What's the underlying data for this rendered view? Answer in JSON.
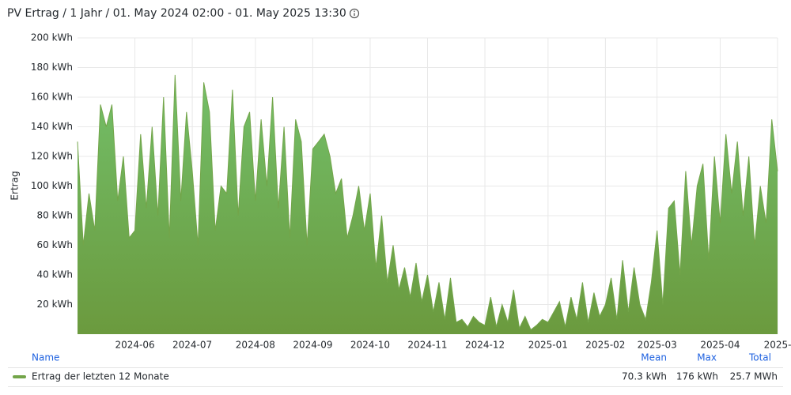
{
  "chart_data": {
    "type": "area",
    "title": "PV Ertrag / 1 Jahr / 01. May 2024 02:00 - 01. May 2025 13:30",
    "y_label": "Ertrag",
    "ylim": [
      0,
      200
    ],
    "yticks": [
      {
        "value": 20,
        "label": "20 kWh"
      },
      {
        "value": 40,
        "label": "40 kWh"
      },
      {
        "value": 60,
        "label": "60 kWh"
      },
      {
        "value": 80,
        "label": "80 kWh"
      },
      {
        "value": 100,
        "label": "100 kWh"
      },
      {
        "value": 120,
        "label": "120 kWh"
      },
      {
        "value": 140,
        "label": "140 kWh"
      },
      {
        "value": 160,
        "label": "160 kWh"
      },
      {
        "value": 180,
        "label": "180 kWh"
      },
      {
        "value": 200,
        "label": "200 kWh"
      }
    ],
    "grid": true,
    "categories": [
      null,
      null,
      null,
      null,
      null,
      null,
      null,
      null,
      null,
      null,
      "2024-06",
      null,
      null,
      null,
      null,
      null,
      null,
      null,
      null,
      null,
      "2024-07",
      null,
      null,
      null,
      null,
      null,
      null,
      null,
      null,
      null,
      null,
      "2024-08",
      null,
      null,
      null,
      null,
      null,
      null,
      null,
      null,
      null,
      "2024-09",
      null,
      null,
      null,
      null,
      null,
      null,
      null,
      null,
      null,
      "2024-10",
      null,
      null,
      null,
      null,
      null,
      null,
      null,
      null,
      null,
      "2024-11",
      null,
      null,
      null,
      null,
      null,
      null,
      null,
      null,
      null,
      "2024-12",
      null,
      null,
      null,
      null,
      null,
      null,
      null,
      null,
      null,
      null,
      "2025-01",
      null,
      null,
      null,
      null,
      null,
      null,
      null,
      null,
      null,
      "2025-02",
      null,
      null,
      null,
      null,
      null,
      null,
      null,
      null,
      "2025-03",
      null,
      null,
      null,
      null,
      null,
      null,
      null,
      null,
      null,
      null,
      "2025-04",
      null,
      null,
      null,
      null,
      null,
      null,
      null,
      null,
      null,
      "2025-"
    ],
    "series": [
      {
        "name": "Ertrag der letzten 12 Monate",
        "color": "#73a54a",
        "values": [
          130,
          60,
          95,
          70,
          155,
          140,
          155,
          90,
          120,
          65,
          70,
          135,
          85,
          140,
          80,
          160,
          65,
          175,
          90,
          150,
          110,
          60,
          170,
          150,
          70,
          100,
          95,
          165,
          80,
          140,
          150,
          90,
          145,
          100,
          160,
          85,
          140,
          65,
          145,
          130,
          60,
          125,
          130,
          135,
          120,
          95,
          105,
          65,
          80,
          100,
          70,
          95,
          45,
          80,
          35,
          60,
          30,
          45,
          25,
          48,
          22,
          40,
          15,
          35,
          10,
          38,
          8,
          10,
          5,
          12,
          8,
          6,
          25,
          5,
          20,
          8,
          30,
          4,
          12,
          3,
          6,
          10,
          8,
          15,
          22,
          5,
          25,
          10,
          35,
          8,
          28,
          12,
          20,
          38,
          10,
          50,
          15,
          45,
          20,
          10,
          35,
          70,
          20,
          85,
          90,
          40,
          110,
          60,
          100,
          115,
          50,
          120,
          75,
          135,
          95,
          130,
          80,
          120,
          60,
          100,
          75,
          145,
          110
        ]
      }
    ],
    "legend": {
      "headers": [
        "Name",
        "Mean",
        "Max",
        "Total"
      ],
      "stats": [
        "70.3 kWh",
        "176 kWh",
        "25.7 MWh"
      ]
    }
  }
}
